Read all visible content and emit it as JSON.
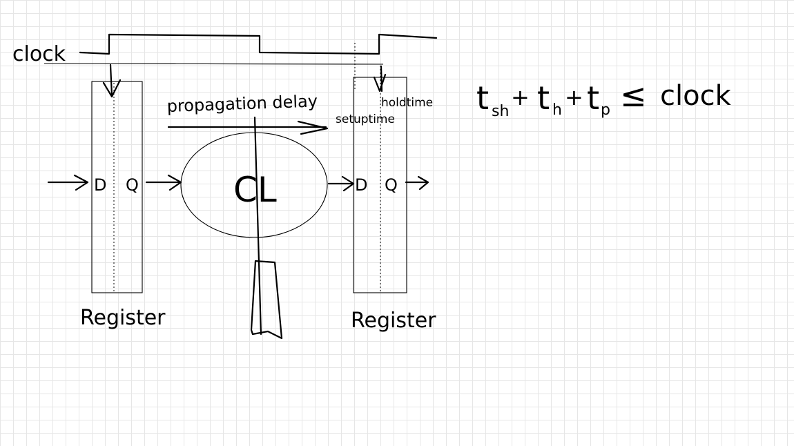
{
  "labels": {
    "clock": "clock",
    "propagation_delay": "propagation delay",
    "setup_time": "setuptime",
    "hold_time": "holdtime",
    "register_left": "Register",
    "register_right": "Register",
    "d_left": "D",
    "q_left": "Q",
    "d_right": "D",
    "q_right": "Q",
    "logic": "CL"
  },
  "equation": {
    "t1": "t",
    "sub1": "sh",
    "plus1": "+",
    "t2": "t",
    "sub2": "h",
    "plus2": "+",
    "t3": "t",
    "sub3": "p",
    "le": "≤",
    "rhs": "clock"
  }
}
